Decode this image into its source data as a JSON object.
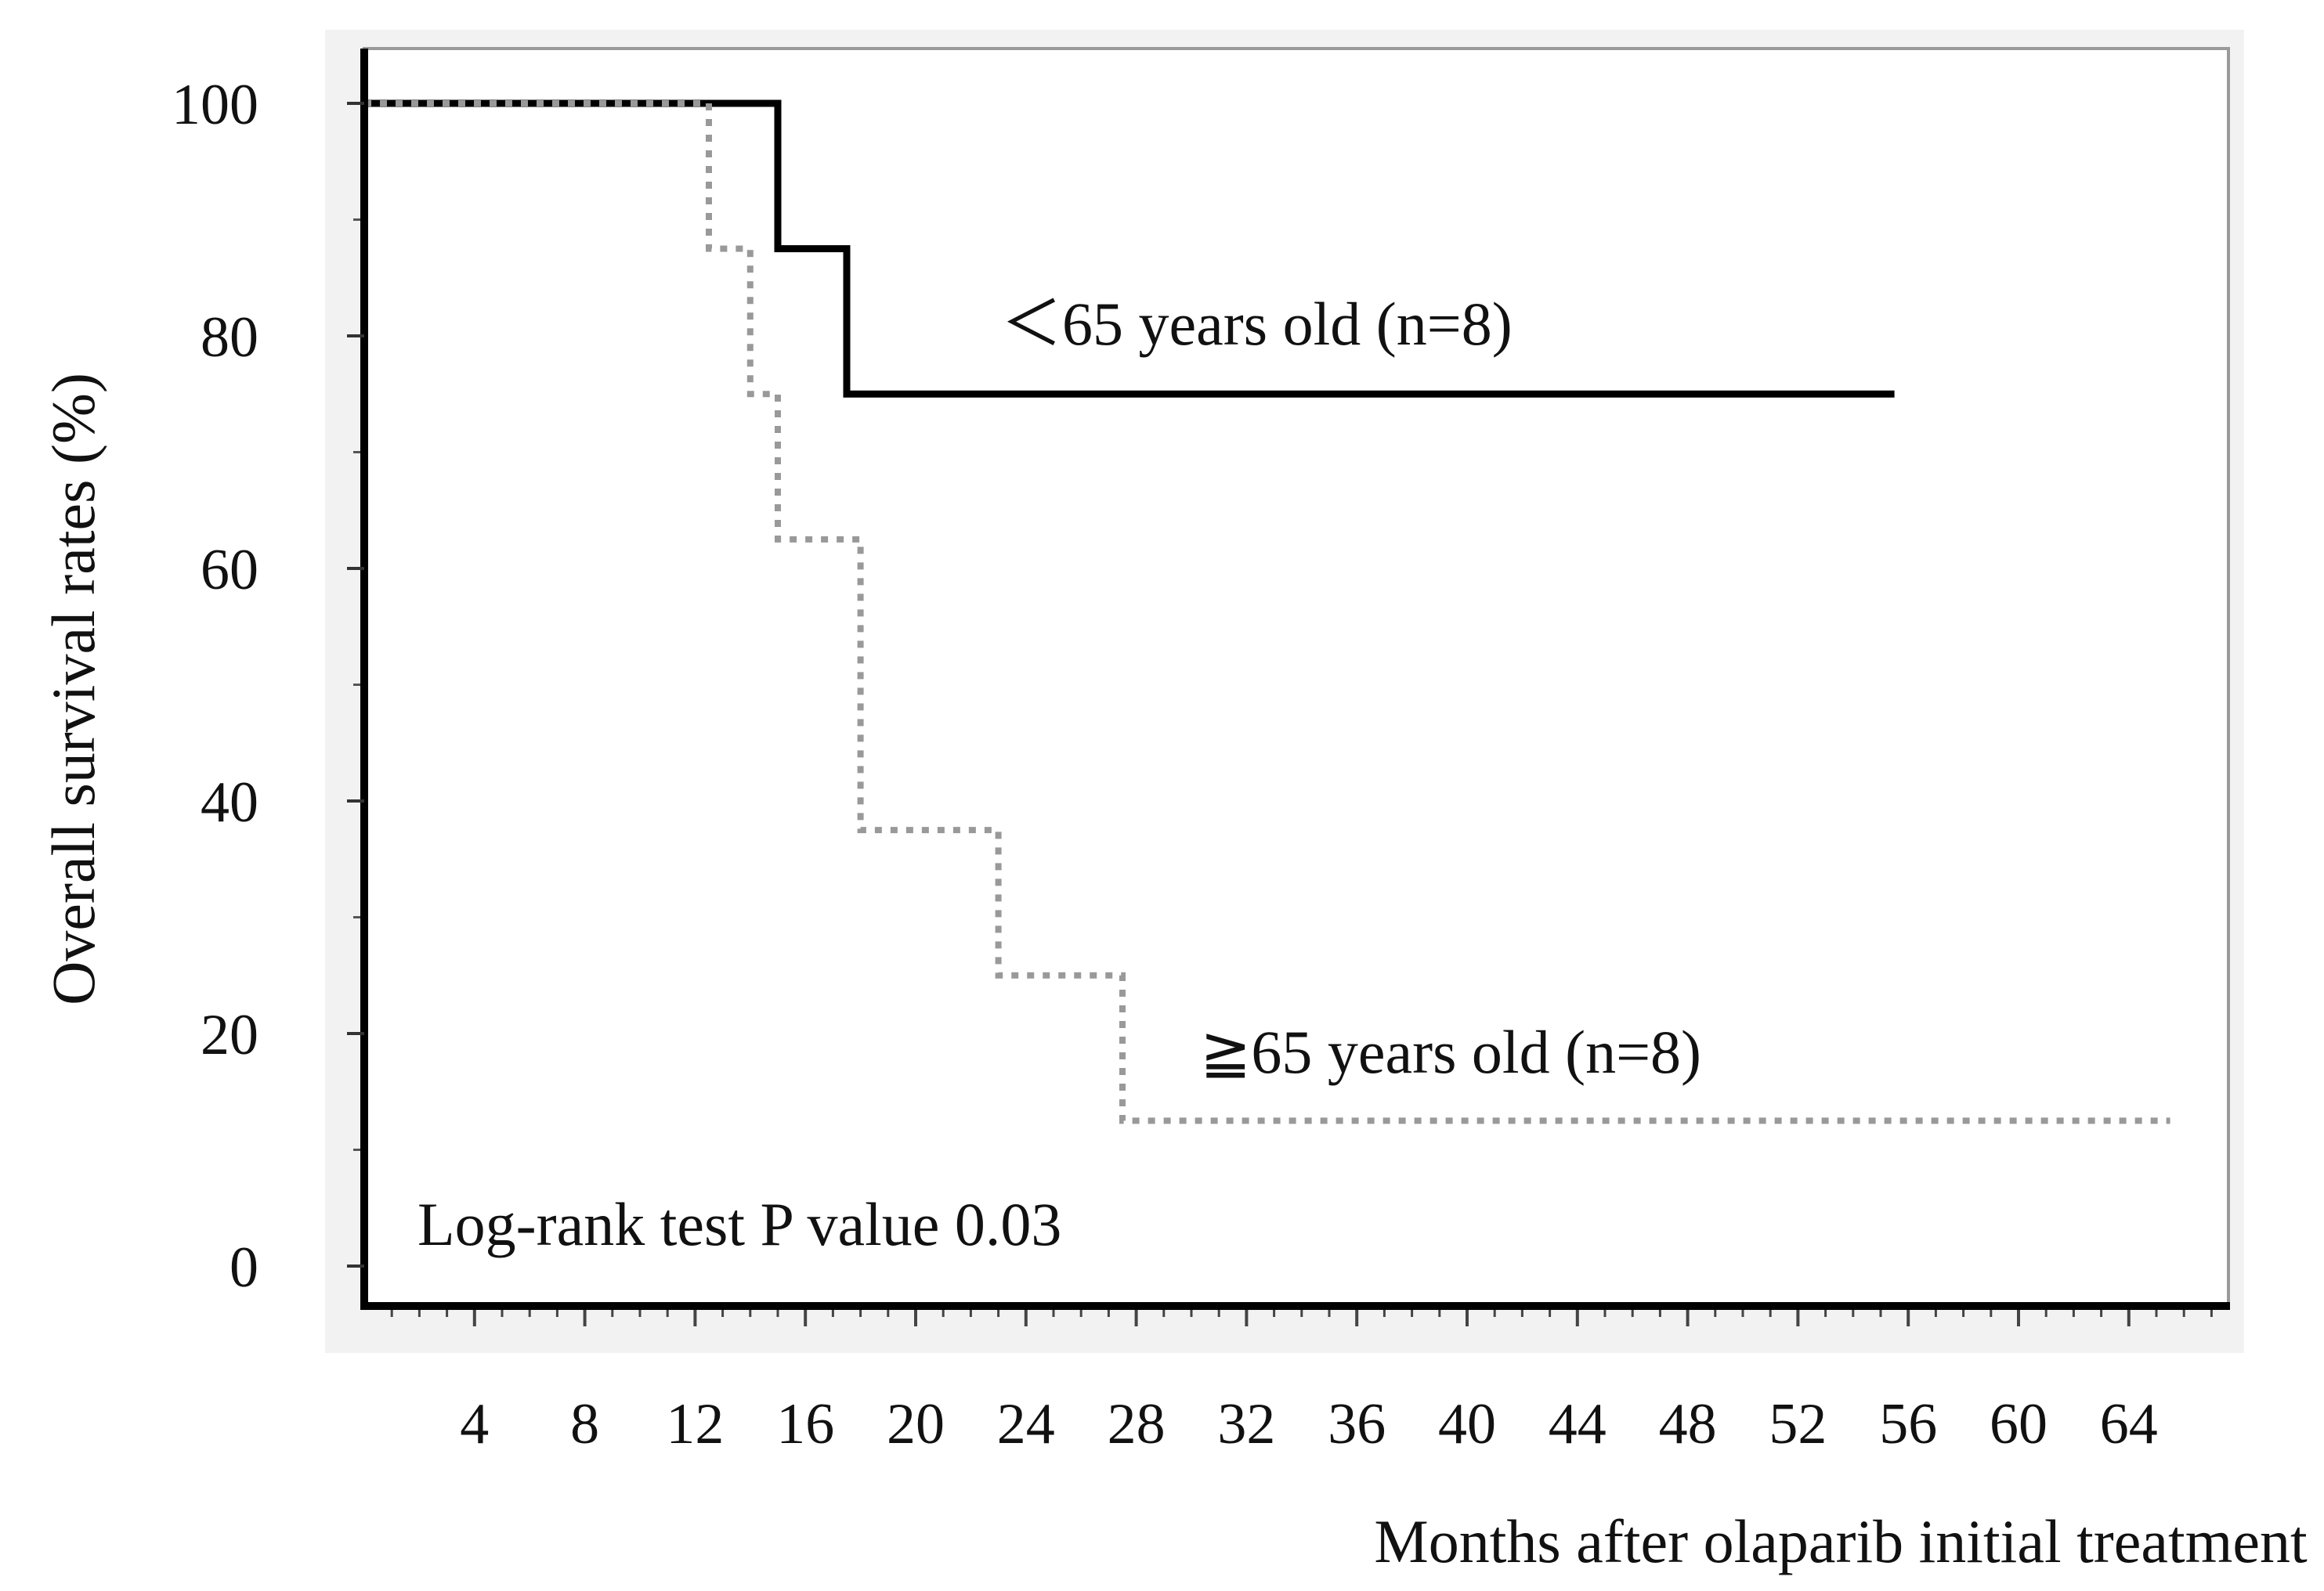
{
  "chart_data": {
    "type": "line",
    "subtype": "kaplan-meier step",
    "ylabel": "Overall survival rates (%)",
    "xlabel": "Months after olaparib initial treatment",
    "ylim": [
      0,
      100
    ],
    "xlim": [
      0,
      68
    ],
    "yticks": [
      0,
      20,
      40,
      60,
      80,
      100
    ],
    "ytick_labels": [
      "0",
      "20",
      "40",
      "60",
      "80",
      "100"
    ],
    "yminor_step": 10,
    "xticks": [
      4,
      8,
      12,
      16,
      20,
      24,
      28,
      32,
      36,
      40,
      44,
      48,
      52,
      56,
      60,
      64
    ],
    "xtick_labels": [
      "4",
      "8",
      "12",
      "16",
      "20",
      "24",
      "28",
      "32",
      "36",
      "40",
      "44",
      "48",
      "52",
      "56",
      "60",
      "64"
    ],
    "xminor_step": 1,
    "grid": false,
    "series": [
      {
        "name": "<65 years old (n=8)",
        "label": "＜65 years old (n=8)",
        "style": "solid",
        "color": "#000000",
        "steps": [
          [
            0,
            100
          ],
          [
            15,
            87.5
          ],
          [
            17.5,
            75
          ],
          [
            55.5,
            75
          ]
        ]
      },
      {
        "name": "≧65 years old (n=8)",
        "label": "≧65 years old (n=8)",
        "style": "dotted",
        "color": "#999999",
        "steps": [
          [
            0,
            100
          ],
          [
            12.5,
            87.5
          ],
          [
            14,
            75
          ],
          [
            15,
            62.5
          ],
          [
            18,
            37.5
          ],
          [
            23,
            25
          ],
          [
            27.5,
            12.5
          ],
          [
            65.5,
            12.5
          ]
        ]
      }
    ],
    "annotation": "Log-rank test P value 0.03"
  }
}
